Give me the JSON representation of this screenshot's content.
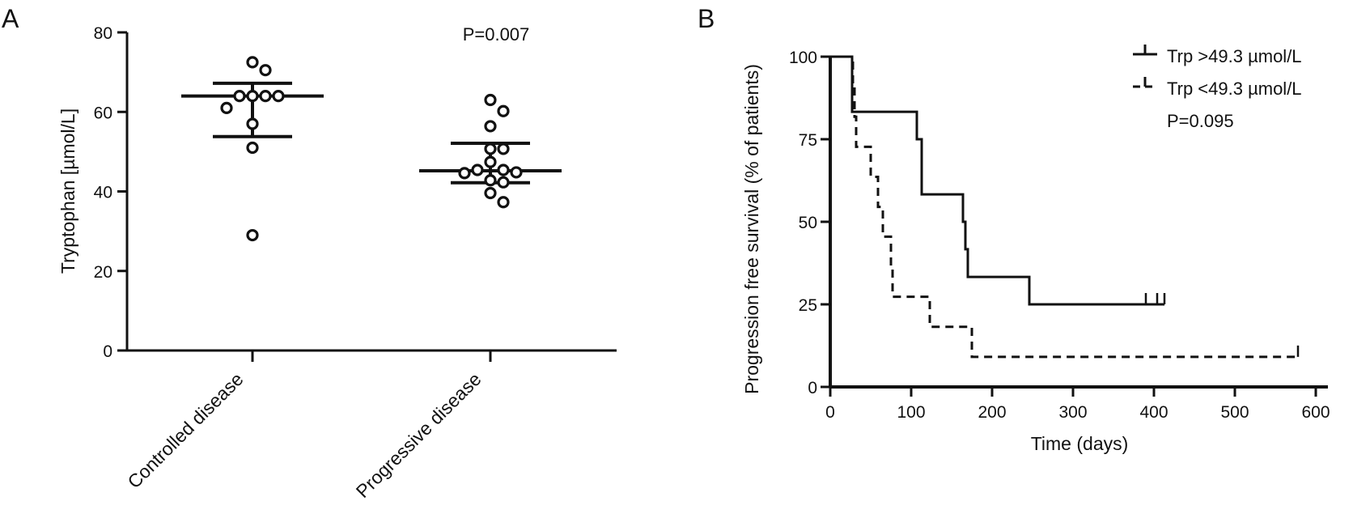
{
  "colors": {
    "ink": "#111111",
    "background": "#ffffff"
  },
  "chart_data": [
    {
      "panel": "A",
      "type": "scatter",
      "subtype": "dot plot with mean and SD bars",
      "ylabel": "Tryptophan [µmol/L]",
      "ylim": [
        0,
        80
      ],
      "yticks": [
        0,
        20,
        40,
        60,
        80
      ],
      "categories": [
        "Controlled disease",
        "Progressive disease"
      ],
      "annotation": "P=0.007",
      "grid": false,
      "groups": [
        {
          "category": "Controlled disease",
          "values": [
            72.5,
            70.5,
            64,
            64,
            64,
            64,
            61,
            57,
            51,
            29
          ],
          "center": 64,
          "upper": 67.2,
          "lower": 53.8
        },
        {
          "category": "Progressive disease",
          "values": [
            63,
            60.2,
            56.4,
            50.7,
            50.7,
            47.4,
            45.4,
            45.4,
            44.8,
            44.6,
            42.8,
            42.3,
            39.6,
            37.3
          ],
          "center": 45.2,
          "upper": 52.1,
          "lower": 42.2
        }
      ]
    },
    {
      "panel": "B",
      "type": "line",
      "subtype": "Kaplan-Meier step curves",
      "xlabel": "Time (days)",
      "ylabel": "Progression free survival (% of patients)",
      "xlim": [
        0,
        600
      ],
      "ylim": [
        0,
        100
      ],
      "xticks": [
        0,
        100,
        200,
        300,
        400,
        500,
        600
      ],
      "yticks": [
        0,
        25,
        50,
        75,
        100
      ],
      "legend_position": "top-right",
      "annotation": "P=0.095",
      "grid": false,
      "series": [
        {
          "name": "Trp >49.3 µmol/L",
          "style": "solid",
          "steps": [
            [
              0,
              100
            ],
            [
              27,
              83.3
            ],
            [
              107,
              75
            ],
            [
              113,
              58.3
            ],
            [
              164,
              50
            ],
            [
              167,
              41.7
            ],
            [
              170,
              33.3
            ],
            [
              246,
              25
            ]
          ],
          "end": 413,
          "censored": [
            [
              390,
              25
            ],
            [
              404,
              25
            ],
            [
              413,
              25
            ]
          ]
        },
        {
          "name": "Trp <49.3 µmol/L",
          "style": "dashed",
          "steps": [
            [
              0,
              100
            ],
            [
              28,
              90.9
            ],
            [
              30,
              81.8
            ],
            [
              32,
              72.7
            ],
            [
              50,
              63.6
            ],
            [
              59,
              54.5
            ],
            [
              65,
              45.5
            ],
            [
              75,
              36.4
            ],
            [
              77,
              27.3
            ],
            [
              123,
              18.2
            ],
            [
              175,
              9.1
            ]
          ],
          "end": 578,
          "censored": [
            [
              578,
              9.1
            ]
          ]
        }
      ]
    }
  ]
}
